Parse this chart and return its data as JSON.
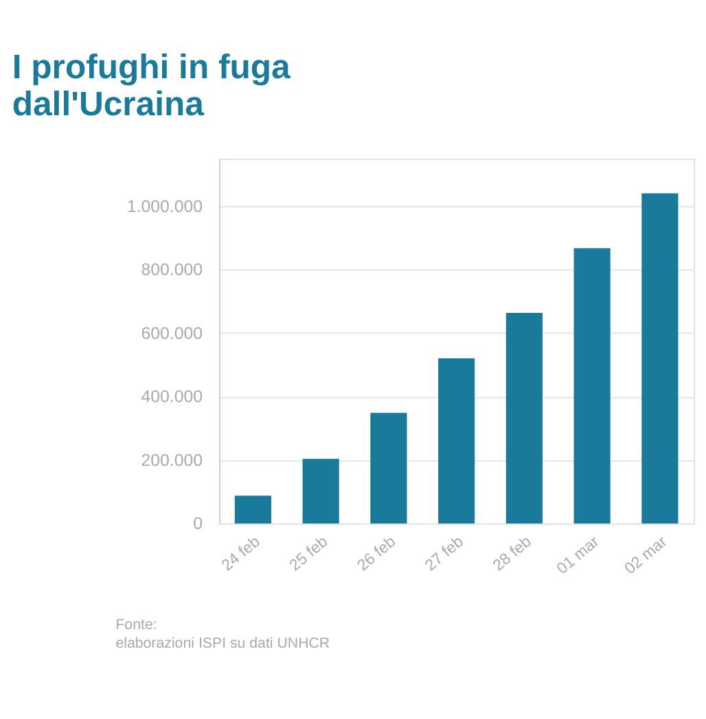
{
  "chart_data": {
    "type": "bar",
    "title": [
      "I profughi in fuga",
      "dall'Ucraina"
    ],
    "categories": [
      "24 feb",
      "25 feb",
      "26 feb",
      "27 feb",
      "28 feb",
      "01 mar",
      "02 mar"
    ],
    "values": [
      88000,
      204000,
      349000,
      521000,
      664000,
      868000,
      1041000
    ],
    "color": "#1a7a9c",
    "ylim": [
      0,
      1150000
    ],
    "yticks": [
      0,
      {
        "value": 200000,
        "label": "200.000"
      },
      {
        "value": 400000,
        "label": "400.000"
      },
      {
        "value": 600000,
        "label": "600.000"
      },
      {
        "value": 800000,
        "label": "800.000"
      },
      {
        "value": 1000000,
        "label": "1.000.000"
      }
    ],
    "grid": "y",
    "annotations": [
      "Fonte:",
      "elaborazioni ISPI su dati UNHCR"
    ]
  }
}
